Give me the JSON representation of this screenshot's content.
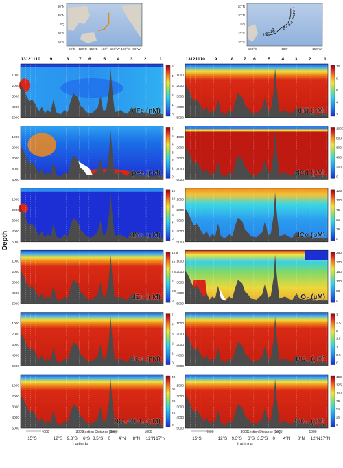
{
  "figure": {
    "y_label": "Depth",
    "maps": {
      "left": {
        "lat_labels": [
          "60°N",
          "30°N",
          "EQ",
          "30°S",
          "60°S"
        ],
        "lon_labels": [
          "90°E",
          "120°E",
          "150°E",
          "180°",
          "150°W",
          "120°W",
          "90°W"
        ]
      },
      "right": {
        "lat_labels": [
          "20°N",
          "10°N",
          "EQ",
          "10°S",
          "20°S"
        ],
        "lon_labels": [
          "160°E",
          "180°",
          "160°W"
        ],
        "station_labels": [
          "1",
          "2",
          "3",
          "4",
          "5",
          "6",
          "7",
          "8",
          "9",
          "10",
          "11",
          "12",
          "13"
        ]
      }
    },
    "station_labels_left": [
      "13",
      "12",
      "11",
      "10",
      "9",
      "8",
      "7",
      "6",
      "5",
      "4",
      "3",
      "2",
      "1"
    ],
    "station_labels_right": [
      "13",
      "12",
      "11",
      "10",
      "9",
      "8",
      "7",
      "6",
      "5",
      "4",
      "3",
      "2",
      "1"
    ],
    "depth_ticks": [
      "1000",
      "2000",
      "3000",
      "4000",
      "5000"
    ],
    "section_distance_label": "Section Distance [km]",
    "section_distance_ticks": [
      "4000",
      "3000",
      "2000",
      "1000"
    ],
    "latitude_label": "Latitude",
    "latitude_ticks": [
      "15°S",
      "12°S",
      "9.3°S",
      "6°S",
      "3.5°S",
      "0",
      "4°N",
      "8°N",
      "12°N",
      "17°N"
    ],
    "panels_left": [
      {
        "label": "dFe (nM)",
        "ticks": [
          "5",
          "4",
          "3",
          "2",
          "1",
          "0"
        ]
      },
      {
        "label": "pFe (pM)",
        "ticks": [
          "6",
          "5",
          "4",
          "3",
          "2",
          "1",
          "0"
        ]
      },
      {
        "label": "dMn (nM)",
        "ticks": [
          "12",
          "10",
          "8",
          "6",
          "4",
          "2",
          "0"
        ]
      },
      {
        "label": "dZn (nM)",
        "ticks": [
          "12.5",
          "10",
          "7.5",
          "5",
          "2.5",
          "0"
        ]
      },
      {
        "label": "dCu (nM)",
        "ticks": [
          "5",
          "4",
          "3",
          "2",
          "1",
          "0"
        ]
      },
      {
        "label": "NO₂+NO₃ (µM)",
        "ticks": [
          "40",
          "30",
          "20",
          "10",
          "0"
        ]
      }
    ],
    "panels_right": [
      {
        "label": "dNi (nM)",
        "ticks": [
          "10",
          "8",
          "6",
          "4",
          "2"
        ]
      },
      {
        "label": "dCd (pM)",
        "ticks": [
          "1000",
          "800",
          "600",
          "400",
          "200",
          "0"
        ]
      },
      {
        "label": "dCo (pM)",
        "ticks": [
          "125",
          "100",
          "75",
          "50",
          "25",
          "0"
        ]
      },
      {
        "label": "O₂ (µM)",
        "ticks": [
          "250",
          "200",
          "150",
          "100",
          "50",
          "0"
        ]
      },
      {
        "label": "PO₄ (µM)",
        "ticks": [
          "3",
          "2.5",
          "2",
          "1.5",
          "1",
          "0.5",
          "0"
        ]
      },
      {
        "label": "SiO₂ (µM)",
        "ticks": [
          "150",
          "125",
          "100",
          "75",
          "50",
          "25",
          "0"
        ]
      }
    ]
  }
}
